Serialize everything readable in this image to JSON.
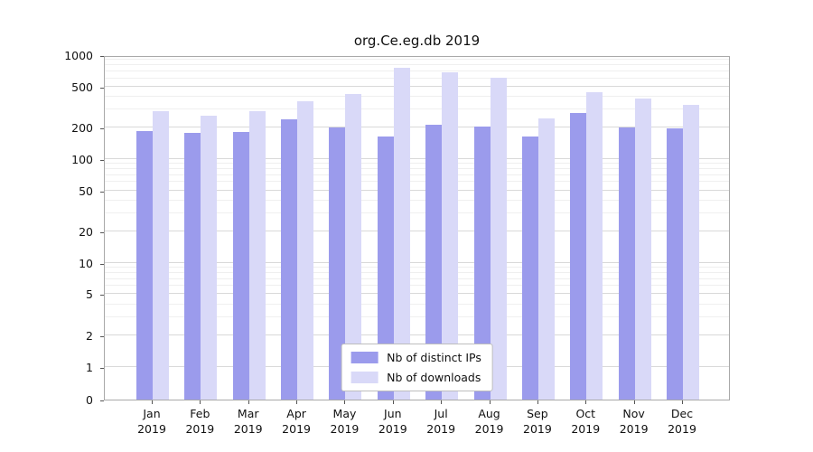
{
  "chart_data": {
    "type": "bar",
    "title": "org.Ce.eg.db 2019",
    "scale": "symlog",
    "ylim": [
      0,
      1000
    ],
    "yticks": [
      0,
      1,
      2,
      5,
      10,
      20,
      50,
      100,
      200,
      500,
      1000
    ],
    "minor_yticks": [
      3,
      4,
      6,
      7,
      8,
      9,
      30,
      40,
      60,
      70,
      80,
      90,
      300,
      400,
      600,
      700,
      800,
      900
    ],
    "categories": [
      "Jan",
      "Feb",
      "Mar",
      "Apr",
      "May",
      "Jun",
      "Jul",
      "Aug",
      "Sep",
      "Oct",
      "Nov",
      "Dec"
    ],
    "year": "2019",
    "legend_position": "bottom-center",
    "grid": true,
    "series": [
      {
        "name": "Nb of distinct IPs",
        "color": "#9b9bec",
        "values": [
          185,
          180,
          183,
          240,
          200,
          165,
          215,
          207,
          166,
          275,
          202,
          198
        ]
      },
      {
        "name": "Nb of downloads",
        "color": "#d9d9f8",
        "values": [
          290,
          260,
          290,
          360,
          420,
          760,
          680,
          610,
          245,
          440,
          385,
          330
        ]
      }
    ]
  }
}
